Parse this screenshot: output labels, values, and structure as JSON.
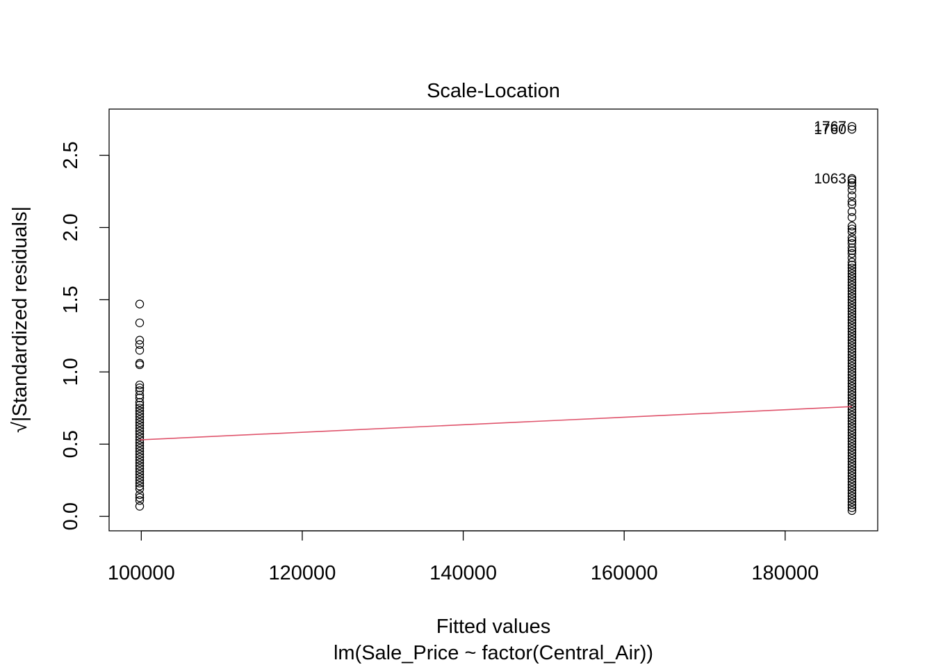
{
  "chart_data": {
    "type": "scatter",
    "title": "Scale-Location",
    "xlabel": "Fitted values",
    "xsublabel": "lm(Sale_Price ~ factor(Central_Air))",
    "ylabel_radical": "√",
    "ylabel": "|Standardized residuals|",
    "xlim": [
      96000,
      191500
    ],
    "ylim": [
      -0.1,
      2.82
    ],
    "xticks": [
      100000,
      120000,
      140000,
      160000,
      180000
    ],
    "xtick_labels": [
      "100000",
      "120000",
      "140000",
      "160000",
      "180000"
    ],
    "yticks": [
      0.0,
      0.5,
      1.0,
      1.5,
      2.0,
      2.5
    ],
    "ytick_labels": [
      "0.0",
      "0.5",
      "1.0",
      "1.5",
      "2.0",
      "2.5"
    ],
    "grid": false,
    "colors": {
      "points": "#000000",
      "smoother": "#DF536B",
      "frame": "#000000"
    },
    "series": [
      {
        "x_fitted": 99800,
        "y": [
          0.07,
          0.11,
          0.13,
          0.15,
          0.19,
          0.21,
          0.23,
          0.25,
          0.27,
          0.29,
          0.31,
          0.33,
          0.35,
          0.37,
          0.39,
          0.41,
          0.43,
          0.45,
          0.47,
          0.49,
          0.51,
          0.53,
          0.55,
          0.57,
          0.59,
          0.61,
          0.63,
          0.65,
          0.67,
          0.69,
          0.71,
          0.73,
          0.75,
          0.77,
          0.79,
          0.82,
          0.84,
          0.87,
          0.89,
          0.91,
          1.05,
          1.06,
          1.15,
          1.19,
          1.22,
          1.34,
          1.47
        ]
      },
      {
        "x_fitted": 188300,
        "y": [
          0.04,
          0.06,
          0.08,
          0.1,
          0.12,
          0.14,
          0.16,
          0.18,
          0.2,
          0.22,
          0.24,
          0.26,
          0.28,
          0.3,
          0.32,
          0.34,
          0.36,
          0.38,
          0.4,
          0.42,
          0.44,
          0.46,
          0.48,
          0.5,
          0.52,
          0.54,
          0.56,
          0.58,
          0.6,
          0.62,
          0.64,
          0.66,
          0.68,
          0.7,
          0.72,
          0.74,
          0.76,
          0.78,
          0.8,
          0.82,
          0.84,
          0.86,
          0.88,
          0.9,
          0.92,
          0.94,
          0.96,
          0.98,
          1.0,
          1.02,
          1.04,
          1.06,
          1.08,
          1.1,
          1.12,
          1.14,
          1.16,
          1.18,
          1.2,
          1.22,
          1.24,
          1.26,
          1.28,
          1.3,
          1.32,
          1.34,
          1.36,
          1.38,
          1.4,
          1.42,
          1.44,
          1.46,
          1.48,
          1.5,
          1.52,
          1.54,
          1.56,
          1.58,
          1.6,
          1.62,
          1.64,
          1.66,
          1.68,
          1.7,
          1.72,
          1.74,
          1.76,
          1.79,
          1.82,
          1.84,
          1.86,
          1.89,
          1.91,
          1.93,
          1.97,
          1.99,
          2.01,
          2.07,
          2.11,
          2.16,
          2.18,
          2.22,
          2.26,
          2.29,
          2.31,
          2.33,
          2.34,
          2.68,
          2.7
        ]
      }
    ],
    "labeled_points": [
      {
        "label": "1767",
        "x": 188300,
        "y": 2.7
      },
      {
        "label": "1760",
        "x": 188300,
        "y": 2.68
      },
      {
        "label": "1063",
        "x": 188300,
        "y": 2.34
      }
    ],
    "smoother": {
      "x": [
        99800,
        188300
      ],
      "y": [
        0.53,
        0.76
      ]
    }
  }
}
